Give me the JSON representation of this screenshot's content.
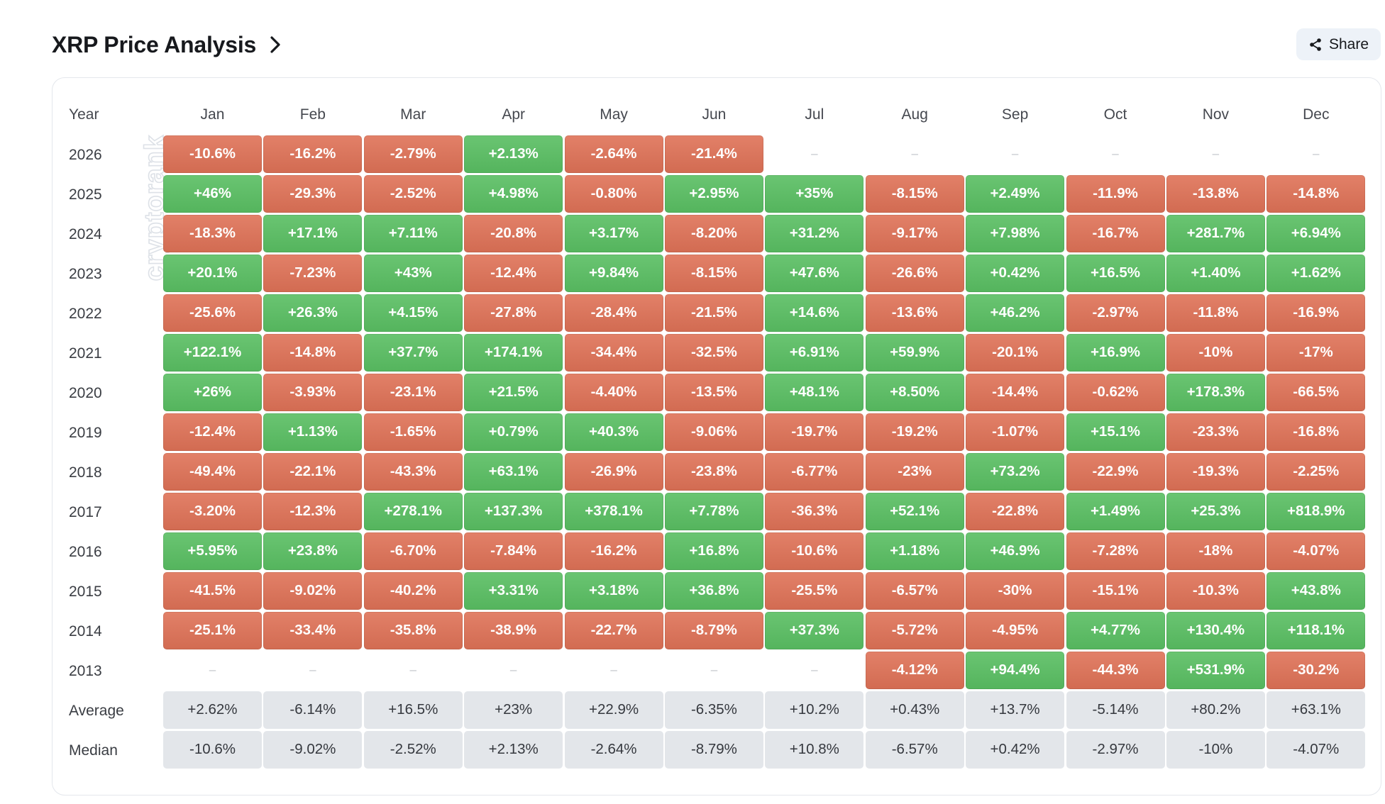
{
  "header": {
    "title": "XRP Price Analysis",
    "share_label": "Share"
  },
  "icons": {
    "title_chevron": "chevron-right-icon",
    "share": "share-icon"
  },
  "watermark": "cryptorank",
  "colors": {
    "positive": "#59BE62",
    "negative": "#DF7257",
    "summary": "#E3E6EA",
    "empty": "#BFC3C9"
  },
  "table": {
    "year_header": "Year",
    "months": [
      "Jan",
      "Feb",
      "Mar",
      "Apr",
      "May",
      "Jun",
      "Jul",
      "Aug",
      "Sep",
      "Oct",
      "Nov",
      "Dec"
    ],
    "rows": [
      {
        "label": "2026",
        "values": [
          "-10.6%",
          "-16.2%",
          "-2.79%",
          "+2.13%",
          "-2.64%",
          "-21.4%",
          "–",
          "–",
          "–",
          "–",
          "–",
          "–"
        ]
      },
      {
        "label": "2025",
        "values": [
          "+46%",
          "-29.3%",
          "-2.52%",
          "+4.98%",
          "-0.80%",
          "+2.95%",
          "+35%",
          "-8.15%",
          "+2.49%",
          "-11.9%",
          "-13.8%",
          "-14.8%"
        ]
      },
      {
        "label": "2024",
        "values": [
          "-18.3%",
          "+17.1%",
          "+7.11%",
          "-20.8%",
          "+3.17%",
          "-8.20%",
          "+31.2%",
          "-9.17%",
          "+7.98%",
          "-16.7%",
          "+281.7%",
          "+6.94%"
        ]
      },
      {
        "label": "2023",
        "values": [
          "+20.1%",
          "-7.23%",
          "+43%",
          "-12.4%",
          "+9.84%",
          "-8.15%",
          "+47.6%",
          "-26.6%",
          "+0.42%",
          "+16.5%",
          "+1.40%",
          "+1.62%"
        ]
      },
      {
        "label": "2022",
        "values": [
          "-25.6%",
          "+26.3%",
          "+4.15%",
          "-27.8%",
          "-28.4%",
          "-21.5%",
          "+14.6%",
          "-13.6%",
          "+46.2%",
          "-2.97%",
          "-11.8%",
          "-16.9%"
        ]
      },
      {
        "label": "2021",
        "values": [
          "+122.1%",
          "-14.8%",
          "+37.7%",
          "+174.1%",
          "-34.4%",
          "-32.5%",
          "+6.91%",
          "+59.9%",
          "-20.1%",
          "+16.9%",
          "-10%",
          "-17%"
        ]
      },
      {
        "label": "2020",
        "values": [
          "+26%",
          "-3.93%",
          "-23.1%",
          "+21.5%",
          "-4.40%",
          "-13.5%",
          "+48.1%",
          "+8.50%",
          "-14.4%",
          "-0.62%",
          "+178.3%",
          "-66.5%"
        ]
      },
      {
        "label": "2019",
        "values": [
          "-12.4%",
          "+1.13%",
          "-1.65%",
          "+0.79%",
          "+40.3%",
          "-9.06%",
          "-19.7%",
          "-19.2%",
          "-1.07%",
          "+15.1%",
          "-23.3%",
          "-16.8%"
        ]
      },
      {
        "label": "2018",
        "values": [
          "-49.4%",
          "-22.1%",
          "-43.3%",
          "+63.1%",
          "-26.9%",
          "-23.8%",
          "-6.77%",
          "-23%",
          "+73.2%",
          "-22.9%",
          "-19.3%",
          "-2.25%"
        ]
      },
      {
        "label": "2017",
        "values": [
          "-3.20%",
          "-12.3%",
          "+278.1%",
          "+137.3%",
          "+378.1%",
          "+7.78%",
          "-36.3%",
          "+52.1%",
          "-22.8%",
          "+1.49%",
          "+25.3%",
          "+818.9%"
        ]
      },
      {
        "label": "2016",
        "values": [
          "+5.95%",
          "+23.8%",
          "-6.70%",
          "-7.84%",
          "-16.2%",
          "+16.8%",
          "-10.6%",
          "+1.18%",
          "+46.9%",
          "-7.28%",
          "-18%",
          "-4.07%"
        ]
      },
      {
        "label": "2015",
        "values": [
          "-41.5%",
          "-9.02%",
          "-40.2%",
          "+3.31%",
          "+3.18%",
          "+36.8%",
          "-25.5%",
          "-6.57%",
          "-30%",
          "-15.1%",
          "-10.3%",
          "+43.8%"
        ]
      },
      {
        "label": "2014",
        "values": [
          "-25.1%",
          "-33.4%",
          "-35.8%",
          "-38.9%",
          "-22.7%",
          "-8.79%",
          "+37.3%",
          "-5.72%",
          "-4.95%",
          "+4.77%",
          "+130.4%",
          "+118.1%"
        ]
      },
      {
        "label": "2013",
        "values": [
          "–",
          "–",
          "–",
          "–",
          "–",
          "–",
          "–",
          "-4.12%",
          "+94.4%",
          "-44.3%",
          "+531.9%",
          "-30.2%"
        ]
      }
    ],
    "summary_rows": [
      {
        "label": "Average",
        "values": [
          "+2.62%",
          "-6.14%",
          "+16.5%",
          "+23%",
          "+22.9%",
          "-6.35%",
          "+10.2%",
          "+0.43%",
          "+13.7%",
          "-5.14%",
          "+80.2%",
          "+63.1%"
        ]
      },
      {
        "label": "Median",
        "values": [
          "-10.6%",
          "-9.02%",
          "-2.52%",
          "+2.13%",
          "-2.64%",
          "-8.79%",
          "+10.8%",
          "-6.57%",
          "+0.42%",
          "-2.97%",
          "-10%",
          "-4.07%"
        ]
      }
    ]
  }
}
